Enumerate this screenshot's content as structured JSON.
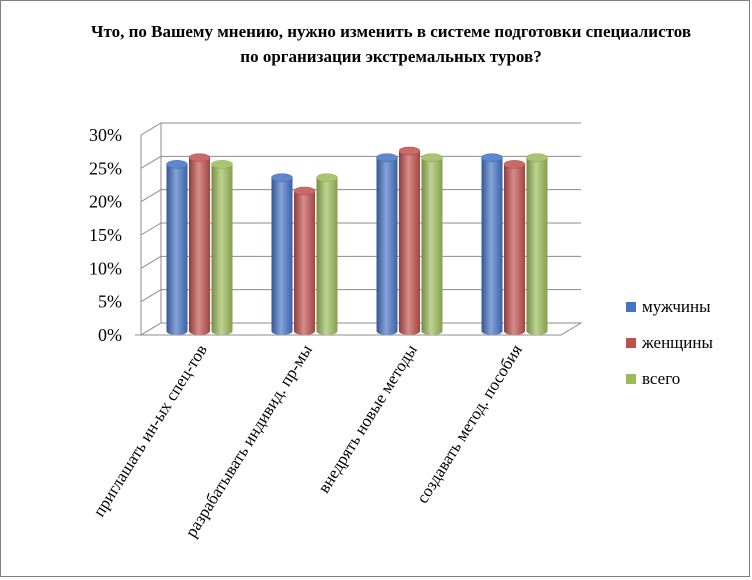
{
  "chart_data": {
    "type": "bar",
    "title": "Что, по Вашему мнению, нужно изменить в системе подготовки специалистов по организации экстремальных туров?",
    "categories": [
      "приглашать ин-ых спец-тов",
      "разрабатывать индивид. пр-мы",
      "внедрять новые методы",
      "создавать метод. пособия"
    ],
    "series": [
      {
        "name": "мужчины",
        "color": "#4472c4",
        "values": [
          25,
          23,
          26,
          26
        ]
      },
      {
        "name": "женщины",
        "color": "#c0504d",
        "values": [
          26,
          21,
          27,
          25
        ]
      },
      {
        "name": "всего",
        "color": "#9bbb59",
        "values": [
          25,
          23,
          26,
          26
        ]
      }
    ],
    "y_ticks": [
      "0%",
      "5%",
      "10%",
      "15%",
      "20%",
      "25%",
      "30%"
    ],
    "ylim": [
      0,
      30
    ],
    "grid": true,
    "legend_position": "right"
  }
}
